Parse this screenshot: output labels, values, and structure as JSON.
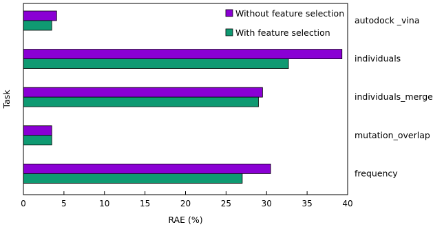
{
  "chart_data": {
    "type": "bar",
    "orientation": "horizontal",
    "categories": [
      "autodock _vina",
      "individuals",
      "individuals_merge",
      "mutation_overlap",
      "frequency"
    ],
    "series": [
      {
        "name": "Without feature selection",
        "color": "#8a00d4",
        "values": [
          4.1,
          39.3,
          29.5,
          3.5,
          30.5
        ]
      },
      {
        "name": "With feature selection",
        "color": "#0f9a72",
        "values": [
          3.5,
          32.7,
          29.0,
          3.5,
          27.0
        ]
      }
    ],
    "xlabel": "RAE (%)",
    "ylabel": "Task",
    "xlim": [
      0,
      40
    ],
    "xticks": [
      0,
      5,
      10,
      15,
      20,
      25,
      30,
      35,
      40
    ],
    "grid": false,
    "legend_position": "top-right"
  }
}
